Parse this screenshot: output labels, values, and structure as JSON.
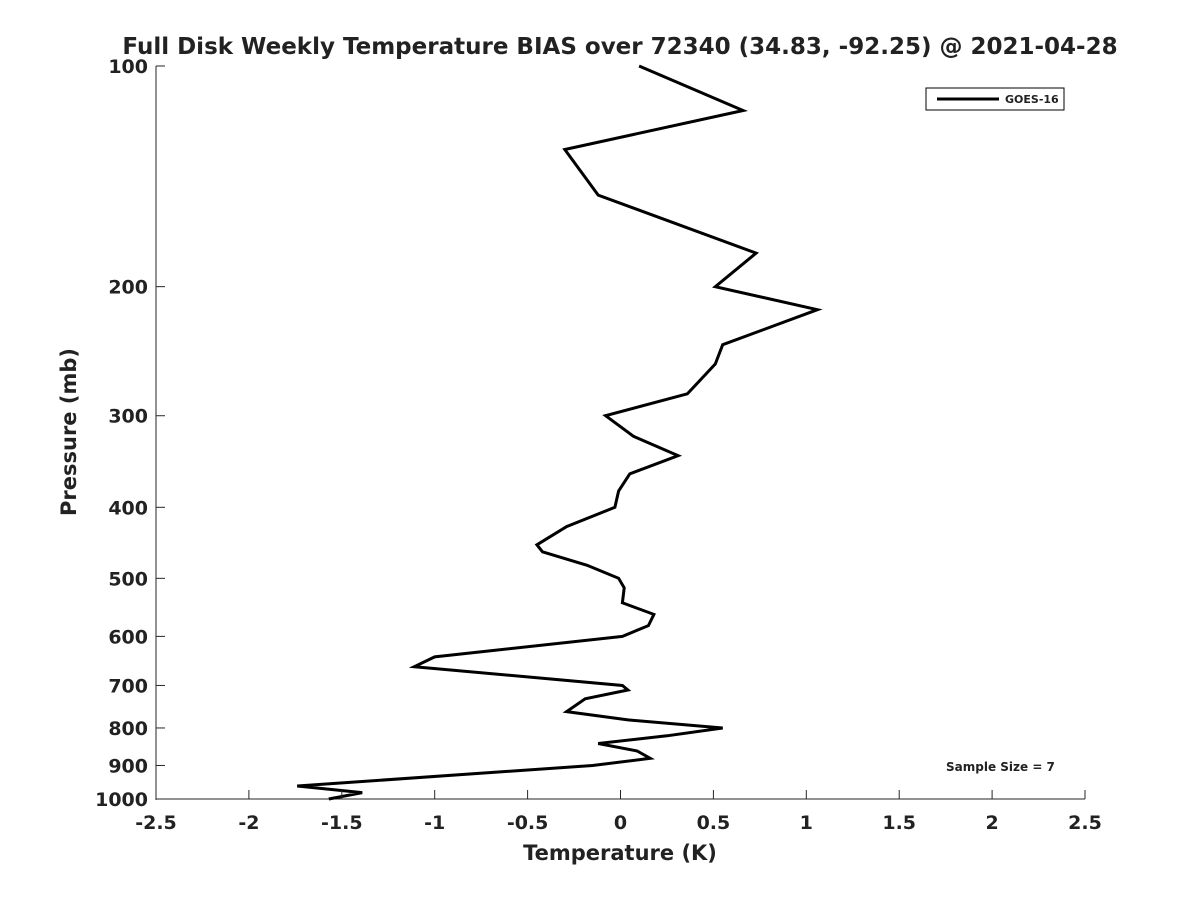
{
  "chart_data": {
    "type": "line",
    "title": "Full Disk Weekly Temperature BIAS over 72340 (34.83, -92.25) @ 2021-04-28",
    "xlabel": "Temperature (K)",
    "ylabel": "Pressure (mb)",
    "xlim": [
      -2.5,
      2.5
    ],
    "ylim": [
      1000,
      100
    ],
    "yscale": "log",
    "y_reversed": true,
    "xticks": [
      -2.5,
      -2,
      -1.5,
      -1,
      -0.5,
      0,
      0.5,
      1,
      1.5,
      2,
      2.5
    ],
    "xtick_labels": [
      "-2.5",
      "-2",
      "-1.5",
      "-1",
      "-0.5",
      "0",
      "0.5",
      "1",
      "1.5",
      "2",
      "2.5"
    ],
    "yticks": [
      100,
      200,
      300,
      400,
      500,
      600,
      700,
      800,
      900,
      1000
    ],
    "ytick_labels": [
      "100",
      "200",
      "300",
      "400",
      "500",
      "600",
      "700",
      "800",
      "900",
      "1000"
    ],
    "grid": false,
    "legend_position": "top-right",
    "annotation": "Sample Size = 7",
    "series": [
      {
        "name": "GOES-16",
        "color": "#000000",
        "points": [
          {
            "x": 0.1,
            "y": 100
          },
          {
            "x": 0.66,
            "y": 115
          },
          {
            "x": -0.3,
            "y": 130
          },
          {
            "x": -0.12,
            "y": 150
          },
          {
            "x": 0.73,
            "y": 180
          },
          {
            "x": 0.51,
            "y": 200
          },
          {
            "x": 1.06,
            "y": 215
          },
          {
            "x": 0.55,
            "y": 240
          },
          {
            "x": 0.51,
            "y": 255
          },
          {
            "x": 0.36,
            "y": 280
          },
          {
            "x": -0.08,
            "y": 300
          },
          {
            "x": 0.07,
            "y": 320
          },
          {
            "x": 0.31,
            "y": 340
          },
          {
            "x": 0.05,
            "y": 360
          },
          {
            "x": -0.01,
            "y": 380
          },
          {
            "x": -0.03,
            "y": 400
          },
          {
            "x": -0.29,
            "y": 425
          },
          {
            "x": -0.45,
            "y": 450
          },
          {
            "x": -0.42,
            "y": 460
          },
          {
            "x": -0.18,
            "y": 480
          },
          {
            "x": -0.01,
            "y": 500
          },
          {
            "x": 0.02,
            "y": 515
          },
          {
            "x": 0.01,
            "y": 540
          },
          {
            "x": 0.18,
            "y": 560
          },
          {
            "x": 0.15,
            "y": 580
          },
          {
            "x": 0.01,
            "y": 600
          },
          {
            "x": -1.0,
            "y": 640
          },
          {
            "x": -1.11,
            "y": 660
          },
          {
            "x": 0.01,
            "y": 700
          },
          {
            "x": 0.04,
            "y": 710
          },
          {
            "x": -0.19,
            "y": 730
          },
          {
            "x": -0.29,
            "y": 760
          },
          {
            "x": 0.04,
            "y": 780
          },
          {
            "x": 0.55,
            "y": 800
          },
          {
            "x": 0.25,
            "y": 820
          },
          {
            "x": -0.12,
            "y": 840
          },
          {
            "x": 0.09,
            "y": 860
          },
          {
            "x": 0.16,
            "y": 880
          },
          {
            "x": -0.15,
            "y": 900
          },
          {
            "x": -1.74,
            "y": 960
          },
          {
            "x": -1.39,
            "y": 980
          },
          {
            "x": -1.57,
            "y": 1000
          }
        ]
      }
    ]
  }
}
